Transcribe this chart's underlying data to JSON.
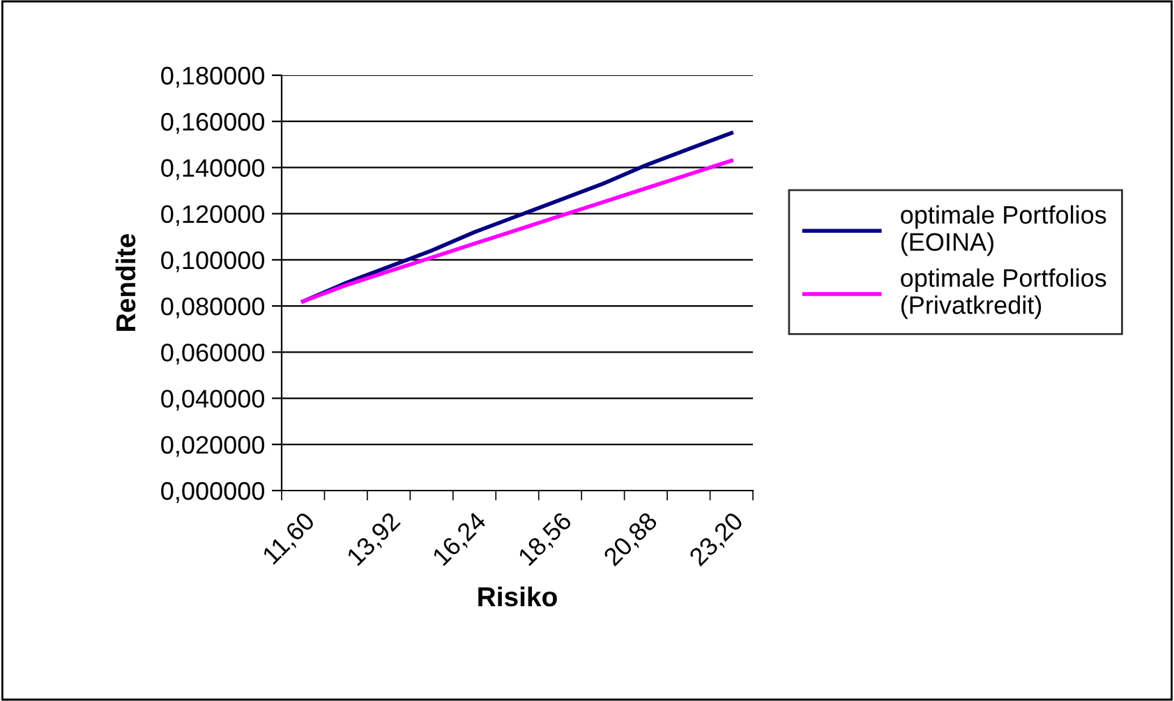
{
  "chart_data": {
    "type": "line",
    "xlabel": "Risiko",
    "ylabel": "Rendite",
    "categories": [
      "11,60",
      null,
      "13,92",
      null,
      "16,24",
      null,
      "18,56",
      null,
      "20,88",
      null,
      "23,20"
    ],
    "series": [
      {
        "name": "optimale Portfolios (EOINA)",
        "color": "#000080",
        "values": [
          0.082,
          0.09,
          0.097,
          0.104,
          0.112,
          0.119,
          0.126,
          0.133,
          0.141,
          0.148,
          0.155
        ]
      },
      {
        "name": "optimale Portfolios (Privatkredit)",
        "color": "#ff00ff",
        "values": [
          0.082,
          0.089,
          0.095,
          0.101,
          0.107,
          0.113,
          0.119,
          0.125,
          0.131,
          0.137,
          0.143
        ]
      }
    ],
    "ylim": [
      0,
      0.18
    ],
    "yticks": [
      {
        "value": 0,
        "label": "0,000000"
      },
      {
        "value": 0.02,
        "label": "0,020000"
      },
      {
        "value": 0.04,
        "label": "0,040000"
      },
      {
        "value": 0.06,
        "label": "0,060000"
      },
      {
        "value": 0.08,
        "label": "0,080000"
      },
      {
        "value": 0.1,
        "label": "0,100000"
      },
      {
        "value": 0.12,
        "label": "0,120000"
      },
      {
        "value": 0.14,
        "label": "0,140000"
      },
      {
        "value": 0.16,
        "label": "0,160000"
      },
      {
        "value": 0.18,
        "label": "0,180000"
      }
    ],
    "grid": "y",
    "legend": "right",
    "marker": "none",
    "line_style": "solid"
  }
}
